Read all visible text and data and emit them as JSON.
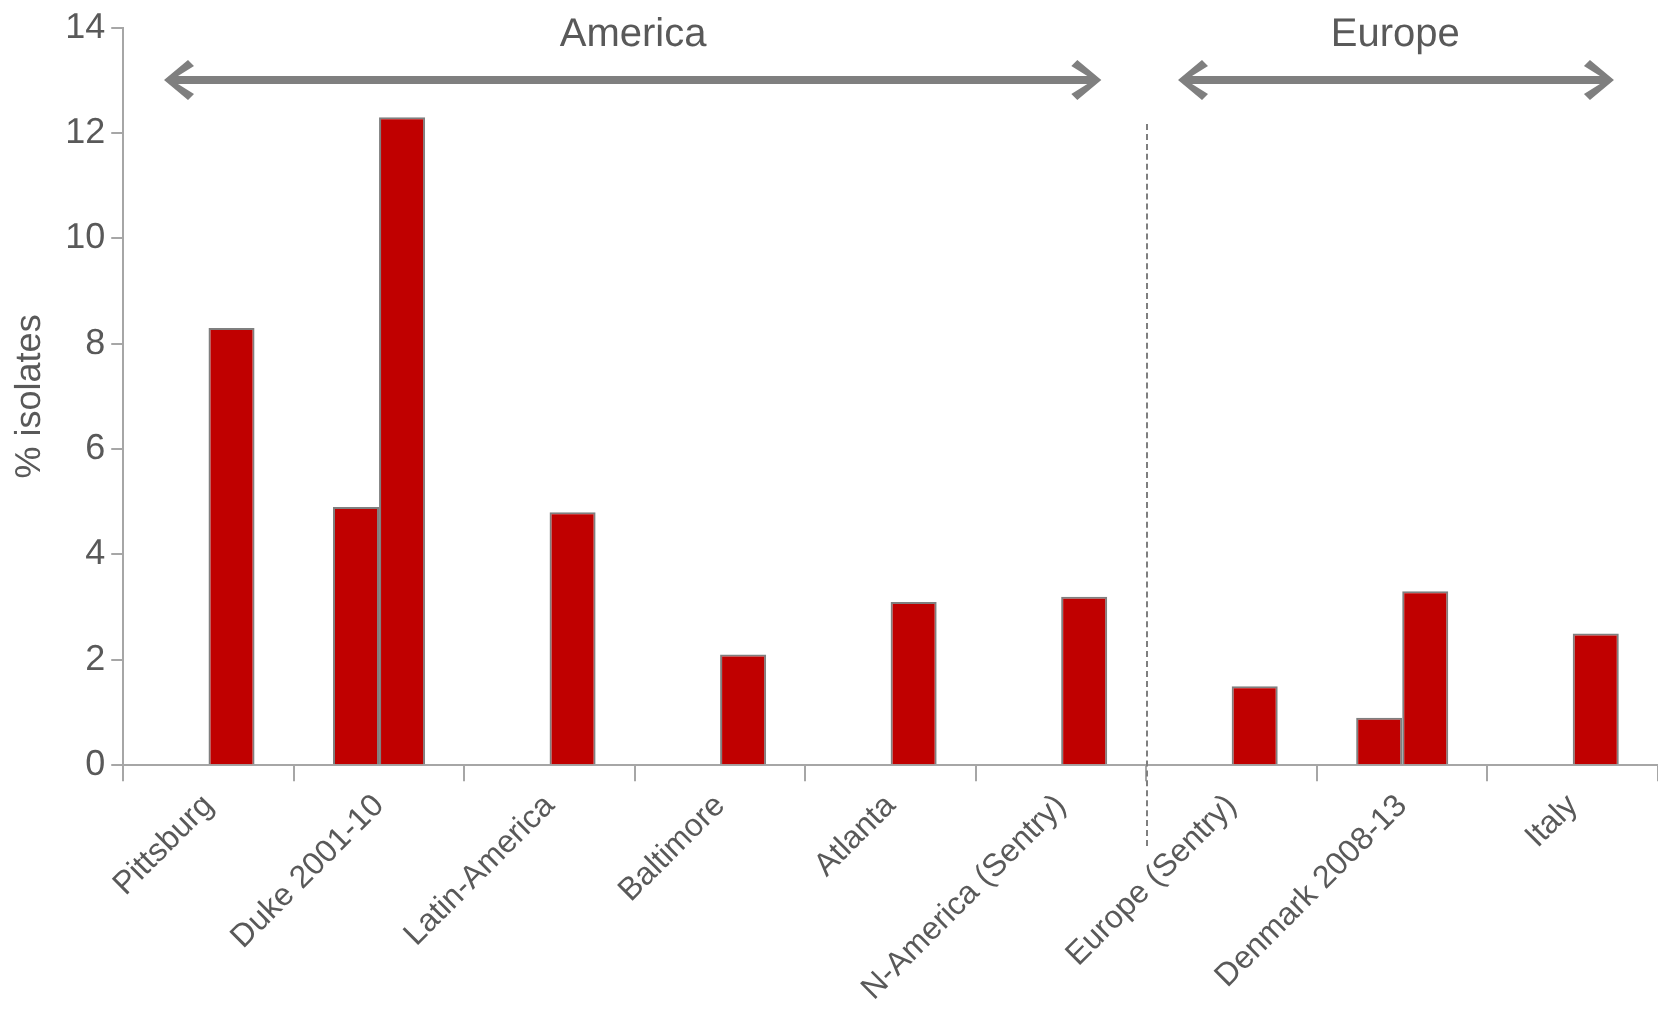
{
  "chart_data": {
    "type": "bar",
    "ylabel": "% isolates",
    "categories": [
      "Pittsburg",
      "Duke 2001-10",
      "Latin-America",
      "Baltimore",
      "Atlanta",
      "N-America (Sentry)",
      "Europe (Sentry)",
      "Denmark 2008-13",
      "Italy"
    ],
    "series": [
      {
        "color": "#c00000",
        "values": [
          null,
          4.9,
          null,
          null,
          null,
          null,
          null,
          0.9,
          null
        ]
      },
      {
        "color": "#c00000",
        "values": [
          8.3,
          12.3,
          4.8,
          2.1,
          3.1,
          3.2,
          1.5,
          3.3,
          2.5
        ]
      }
    ],
    "ylim": [
      0,
      14
    ],
    "yticks": [
      0,
      2,
      4,
      6,
      8,
      10,
      12,
      14
    ],
    "grid": false,
    "legend": false,
    "annotations": [
      "America",
      "Europe"
    ]
  }
}
